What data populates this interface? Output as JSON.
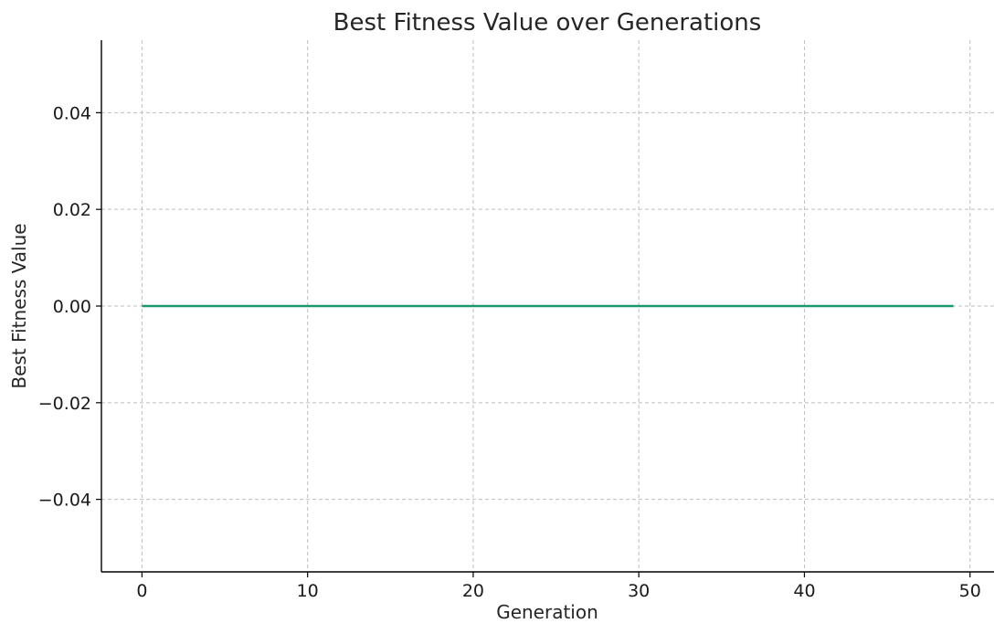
{
  "chart_data": {
    "type": "line",
    "title": "Best Fitness Value over Generations",
    "xlabel": "Generation",
    "ylabel": "Best Fitness Value",
    "x": [
      0,
      1,
      2,
      3,
      4,
      5,
      6,
      7,
      8,
      9,
      10,
      11,
      12,
      13,
      14,
      15,
      16,
      17,
      18,
      19,
      20,
      21,
      22,
      23,
      24,
      25,
      26,
      27,
      28,
      29,
      30,
      31,
      32,
      33,
      34,
      35,
      36,
      37,
      38,
      39,
      40,
      41,
      42,
      43,
      44,
      45,
      46,
      47,
      48,
      49
    ],
    "series": [
      {
        "values": [
          0,
          0,
          0,
          0,
          0,
          0,
          0,
          0,
          0,
          0,
          0,
          0,
          0,
          0,
          0,
          0,
          0,
          0,
          0,
          0,
          0,
          0,
          0,
          0,
          0,
          0,
          0,
          0,
          0,
          0,
          0,
          0,
          0,
          0,
          0,
          0,
          0,
          0,
          0,
          0,
          0,
          0,
          0,
          0,
          0,
          0,
          0,
          0,
          0,
          0
        ],
        "color": "#1a9a6c"
      }
    ],
    "xlim": [
      -2.45,
      51.45
    ],
    "ylim": [
      -0.055,
      0.055
    ],
    "xticks": [
      0,
      10,
      20,
      30,
      40,
      50
    ],
    "xtick_labels": [
      "0",
      "10",
      "20",
      "30",
      "40",
      "50"
    ],
    "yticks": [
      -0.04,
      -0.02,
      0.0,
      0.02,
      0.04
    ],
    "ytick_labels": [
      "−0.04",
      "−0.02",
      "0.00",
      "0.02",
      "0.04"
    ],
    "grid": true,
    "legend": "none"
  }
}
